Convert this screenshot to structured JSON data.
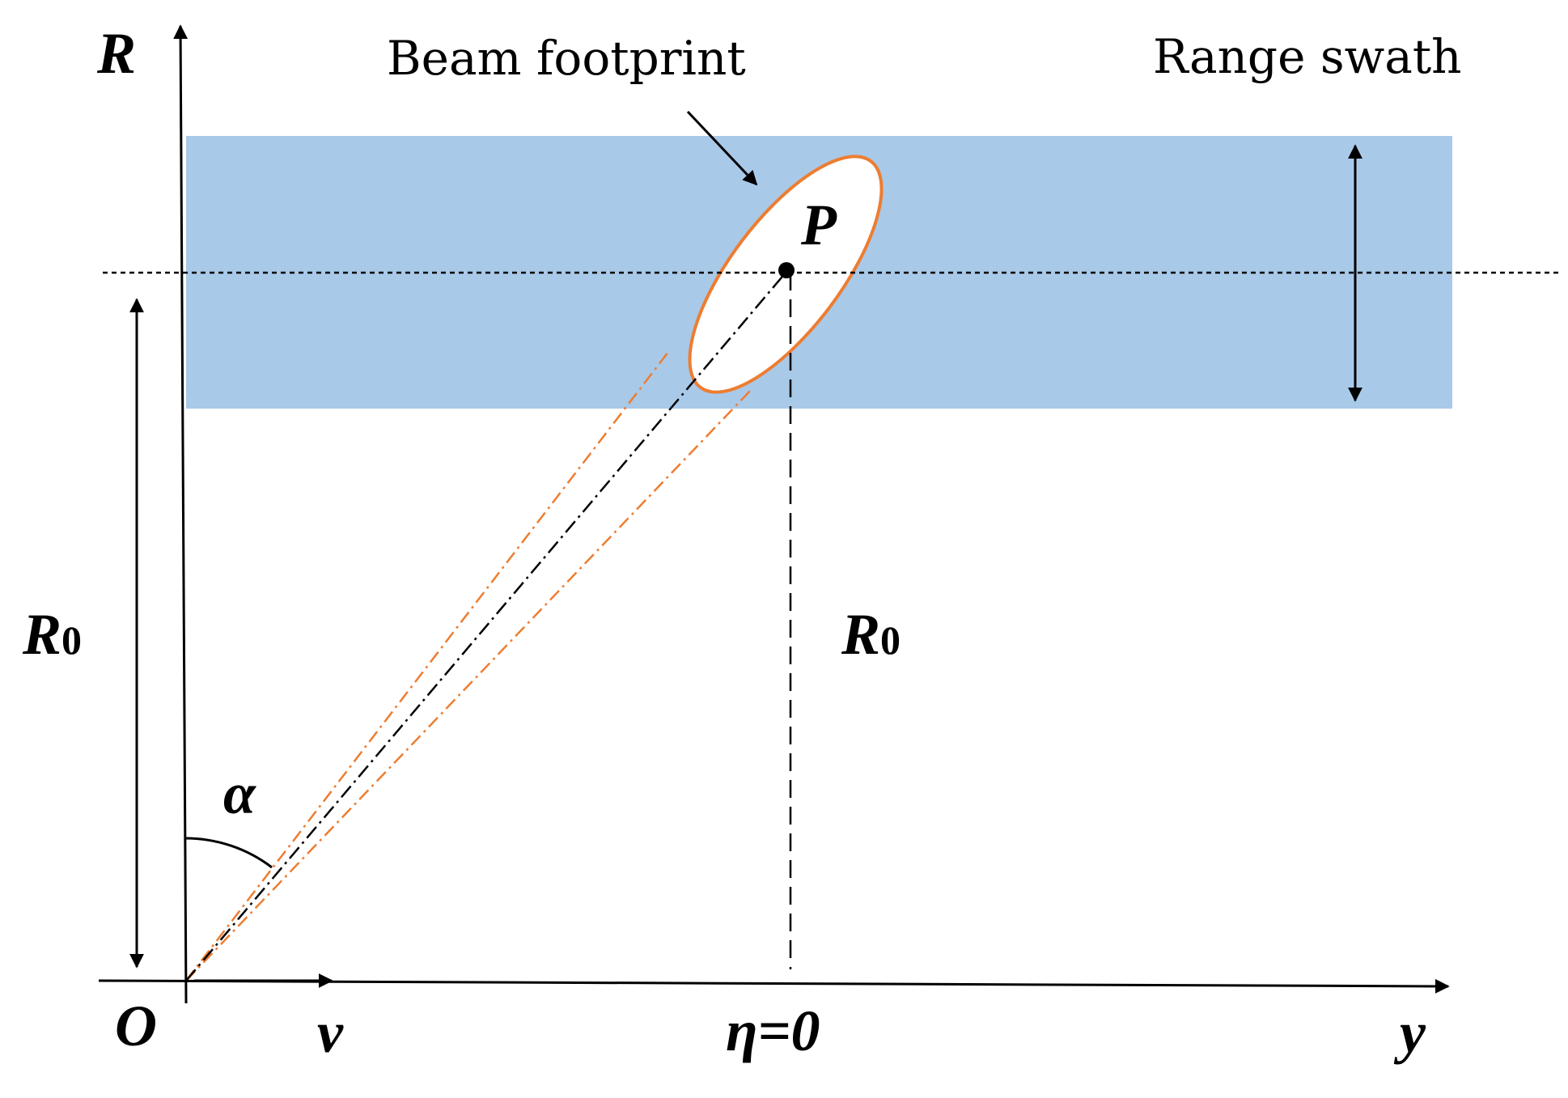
{
  "labels": {
    "r_axis": "R",
    "beam_footprint": "Beam footprint",
    "range_swath": "Range swath",
    "point": "P",
    "r0_left_main": "R",
    "r0_left_sub": "0",
    "r0_right_main": "R",
    "r0_right_sub": "0",
    "alpha": "α",
    "origin": "O",
    "velocity": "v",
    "eta_zero": "η=0",
    "y_axis": "y"
  },
  "colors": {
    "swath_fill": "#a9c9e8",
    "footprint_edge": "#ed7d31",
    "beam_lines": "#ed7d31",
    "axis": "#000000"
  }
}
